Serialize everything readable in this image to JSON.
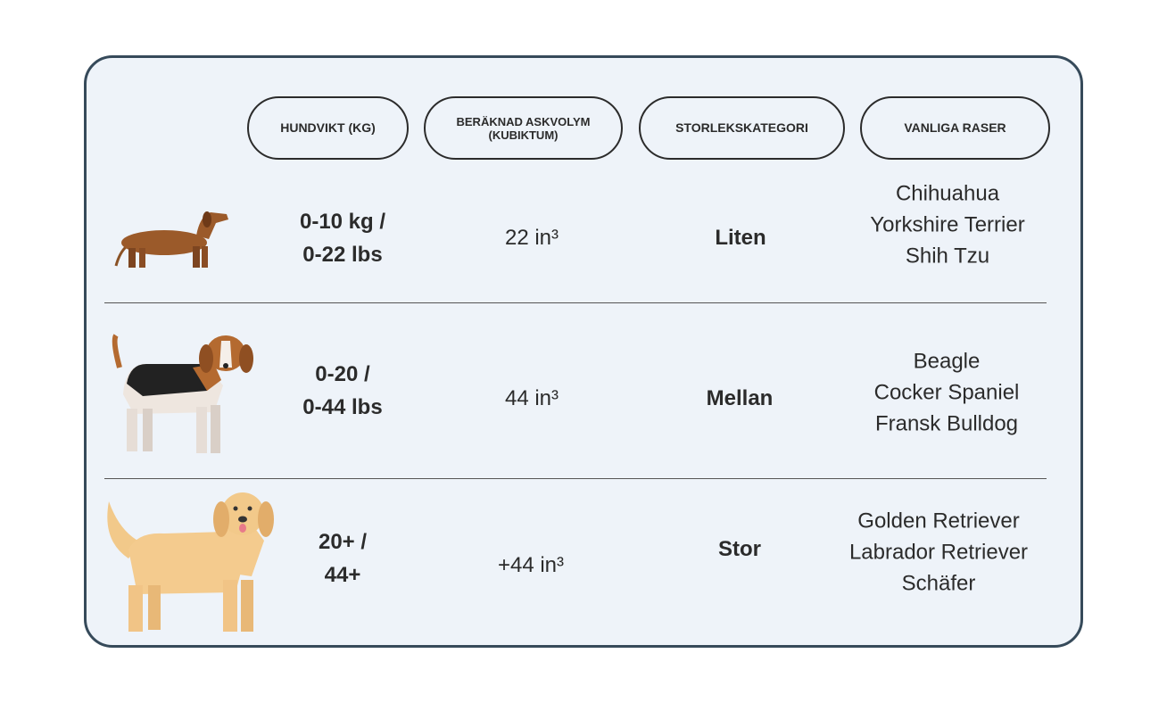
{
  "headers": [
    "HUNDVIKT (KG)",
    "BERÄKNAD ASKVOLYM (KUBIKTUM)",
    "STORLEKSKATEGORI",
    "VANLIGA RASER"
  ],
  "rows": [
    {
      "dog_icon": "dachshund-icon",
      "weight_line1": "0-10 kg /",
      "weight_line2": "0-22 lbs",
      "volume": "22 in³",
      "category": "Liten",
      "breeds": [
        "Chihuahua",
        "Yorkshire Terrier",
        "Shih Tzu"
      ]
    },
    {
      "dog_icon": "beagle-icon",
      "weight_line1": "0-20 /",
      "weight_line2": "0-44 lbs",
      "volume": "44 in³",
      "category": "Mellan",
      "breeds": [
        "Beagle",
        "Cocker Spaniel",
        "Fransk Bulldog"
      ]
    },
    {
      "dog_icon": "golden-retriever-icon",
      "weight_line1": "20+ /",
      "weight_line2": "44+",
      "volume": "+44 in³",
      "category": "Stor",
      "breeds": [
        "Golden Retriever",
        "Labrador Retriever",
        "Schäfer"
      ]
    }
  ],
  "colors": {
    "border": "#364a5a",
    "background": "#eef3f9"
  }
}
